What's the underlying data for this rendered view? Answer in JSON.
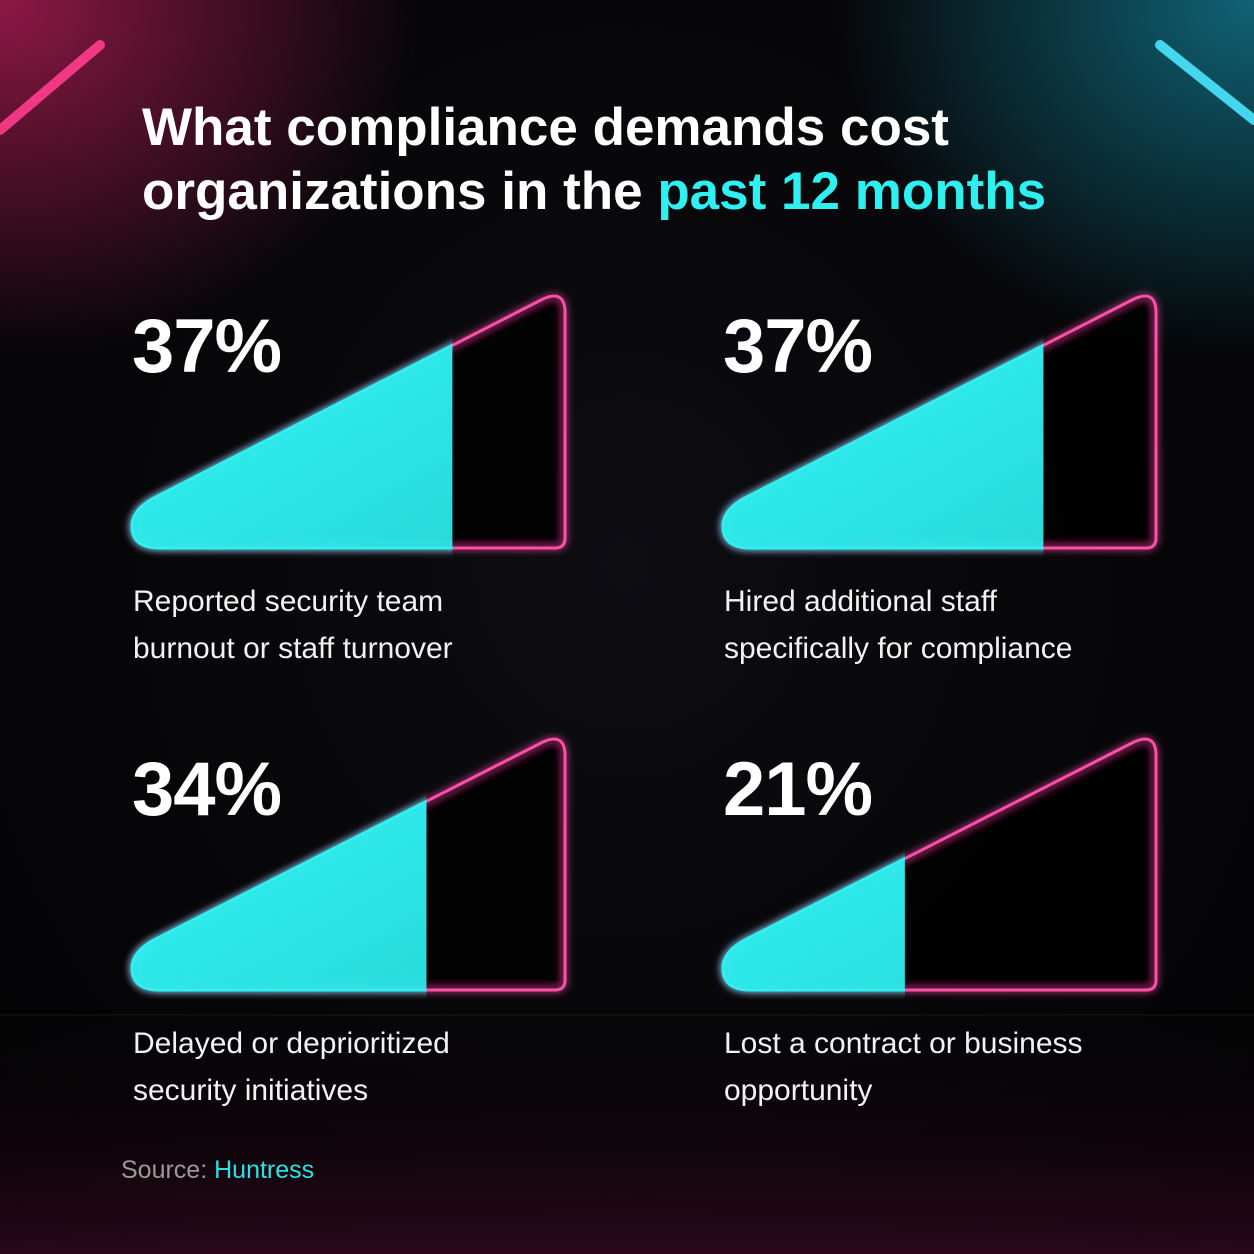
{
  "chart_data": {
    "type": "wedge",
    "title": "What compliance demands cost organizations in the",
    "title_highlight": "past 12 months",
    "categories": [
      "Reported security team burnout or staff turnover",
      "Hired additional staff specifically for compliance",
      "Delayed or deprioritized security initiatives",
      "Lost a contract or business opportunity"
    ],
    "values": [
      37,
      37,
      34,
      21
    ],
    "value_labels": [
      "37%",
      "37%",
      "34%",
      "21%"
    ],
    "xlim": [
      0,
      50
    ],
    "fill_color": "#2ef0f0",
    "outline_color": "#ff4fa8",
    "source_label": "Source:",
    "source": "Huntress"
  }
}
